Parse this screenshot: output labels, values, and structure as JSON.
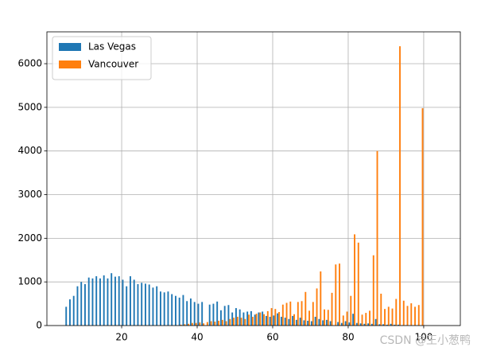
{
  "chart_data": {
    "type": "histogram",
    "bins": [
      5,
      6,
      7,
      8,
      9,
      10,
      11,
      12,
      13,
      14,
      15,
      16,
      17,
      18,
      19,
      20,
      21,
      22,
      23,
      24,
      25,
      26,
      27,
      28,
      29,
      30,
      31,
      32,
      33,
      34,
      35,
      36,
      37,
      38,
      39,
      40,
      41,
      42,
      43,
      44,
      45,
      46,
      47,
      48,
      49,
      50,
      51,
      52,
      53,
      54,
      55,
      56,
      57,
      58,
      59,
      60,
      61,
      62,
      63,
      64,
      65,
      66,
      67,
      68,
      69,
      70,
      71,
      72,
      73,
      74,
      75,
      76,
      77,
      78,
      79,
      80,
      81,
      82,
      83,
      84,
      85,
      86,
      87,
      88,
      89,
      90,
      91,
      92,
      93,
      94,
      95,
      96,
      97,
      98,
      99,
      100
    ],
    "series": [
      {
        "name": "Las Vegas",
        "color": "#1f77b4",
        "values": [
          430,
          600,
          680,
          900,
          1000,
          950,
          1100,
          1080,
          1130,
          1080,
          1150,
          1080,
          1200,
          1120,
          1130,
          1050,
          900,
          1130,
          1050,
          950,
          980,
          960,
          940,
          870,
          900,
          780,
          760,
          780,
          720,
          680,
          640,
          700,
          560,
          620,
          540,
          500,
          540,
          0,
          480,
          500,
          550,
          350,
          450,
          470,
          300,
          400,
          370,
          300,
          320,
          330,
          250,
          300,
          320,
          220,
          200,
          230,
          280,
          200,
          180,
          150,
          220,
          130,
          180,
          120,
          110,
          100,
          200,
          150,
          120,
          130,
          100,
          0,
          80,
          60,
          100,
          70,
          270,
          60,
          50,
          40,
          50,
          40,
          150,
          30,
          30,
          20,
          40,
          20,
          20,
          10,
          10,
          5,
          5,
          5,
          5
        ]
      },
      {
        "name": "Vancouver",
        "color": "#ff7f0e",
        "values": [
          0,
          0,
          0,
          0,
          0,
          0,
          0,
          0,
          0,
          0,
          0,
          0,
          0,
          0,
          0,
          0,
          0,
          0,
          0,
          0,
          0,
          0,
          0,
          0,
          0,
          0,
          0,
          0,
          0,
          0,
          20,
          30,
          40,
          60,
          60,
          70,
          50,
          80,
          100,
          90,
          110,
          130,
          100,
          150,
          180,
          200,
          180,
          150,
          250,
          200,
          270,
          300,
          260,
          330,
          400,
          380,
          310,
          480,
          520,
          550,
          260,
          540,
          560,
          770,
          340,
          540,
          850,
          1240,
          370,
          360,
          750,
          1400,
          1420,
          230,
          320,
          680,
          2090,
          1900,
          250,
          290,
          340,
          1610,
          4000,
          730,
          380,
          430,
          390,
          610,
          6400,
          570,
          450,
          510,
          430,
          470,
          4980
        ]
      }
    ],
    "xlim": [
      0.2,
      109.7
    ],
    "ylim": [
      0,
      6730
    ],
    "xticks": [
      20,
      40,
      60,
      80,
      100
    ],
    "yticks": [
      0,
      1000,
      2000,
      3000,
      4000,
      5000,
      6000
    ],
    "grid": true,
    "legend": "upper left",
    "watermark": "CSDN @王小葱鸭"
  }
}
